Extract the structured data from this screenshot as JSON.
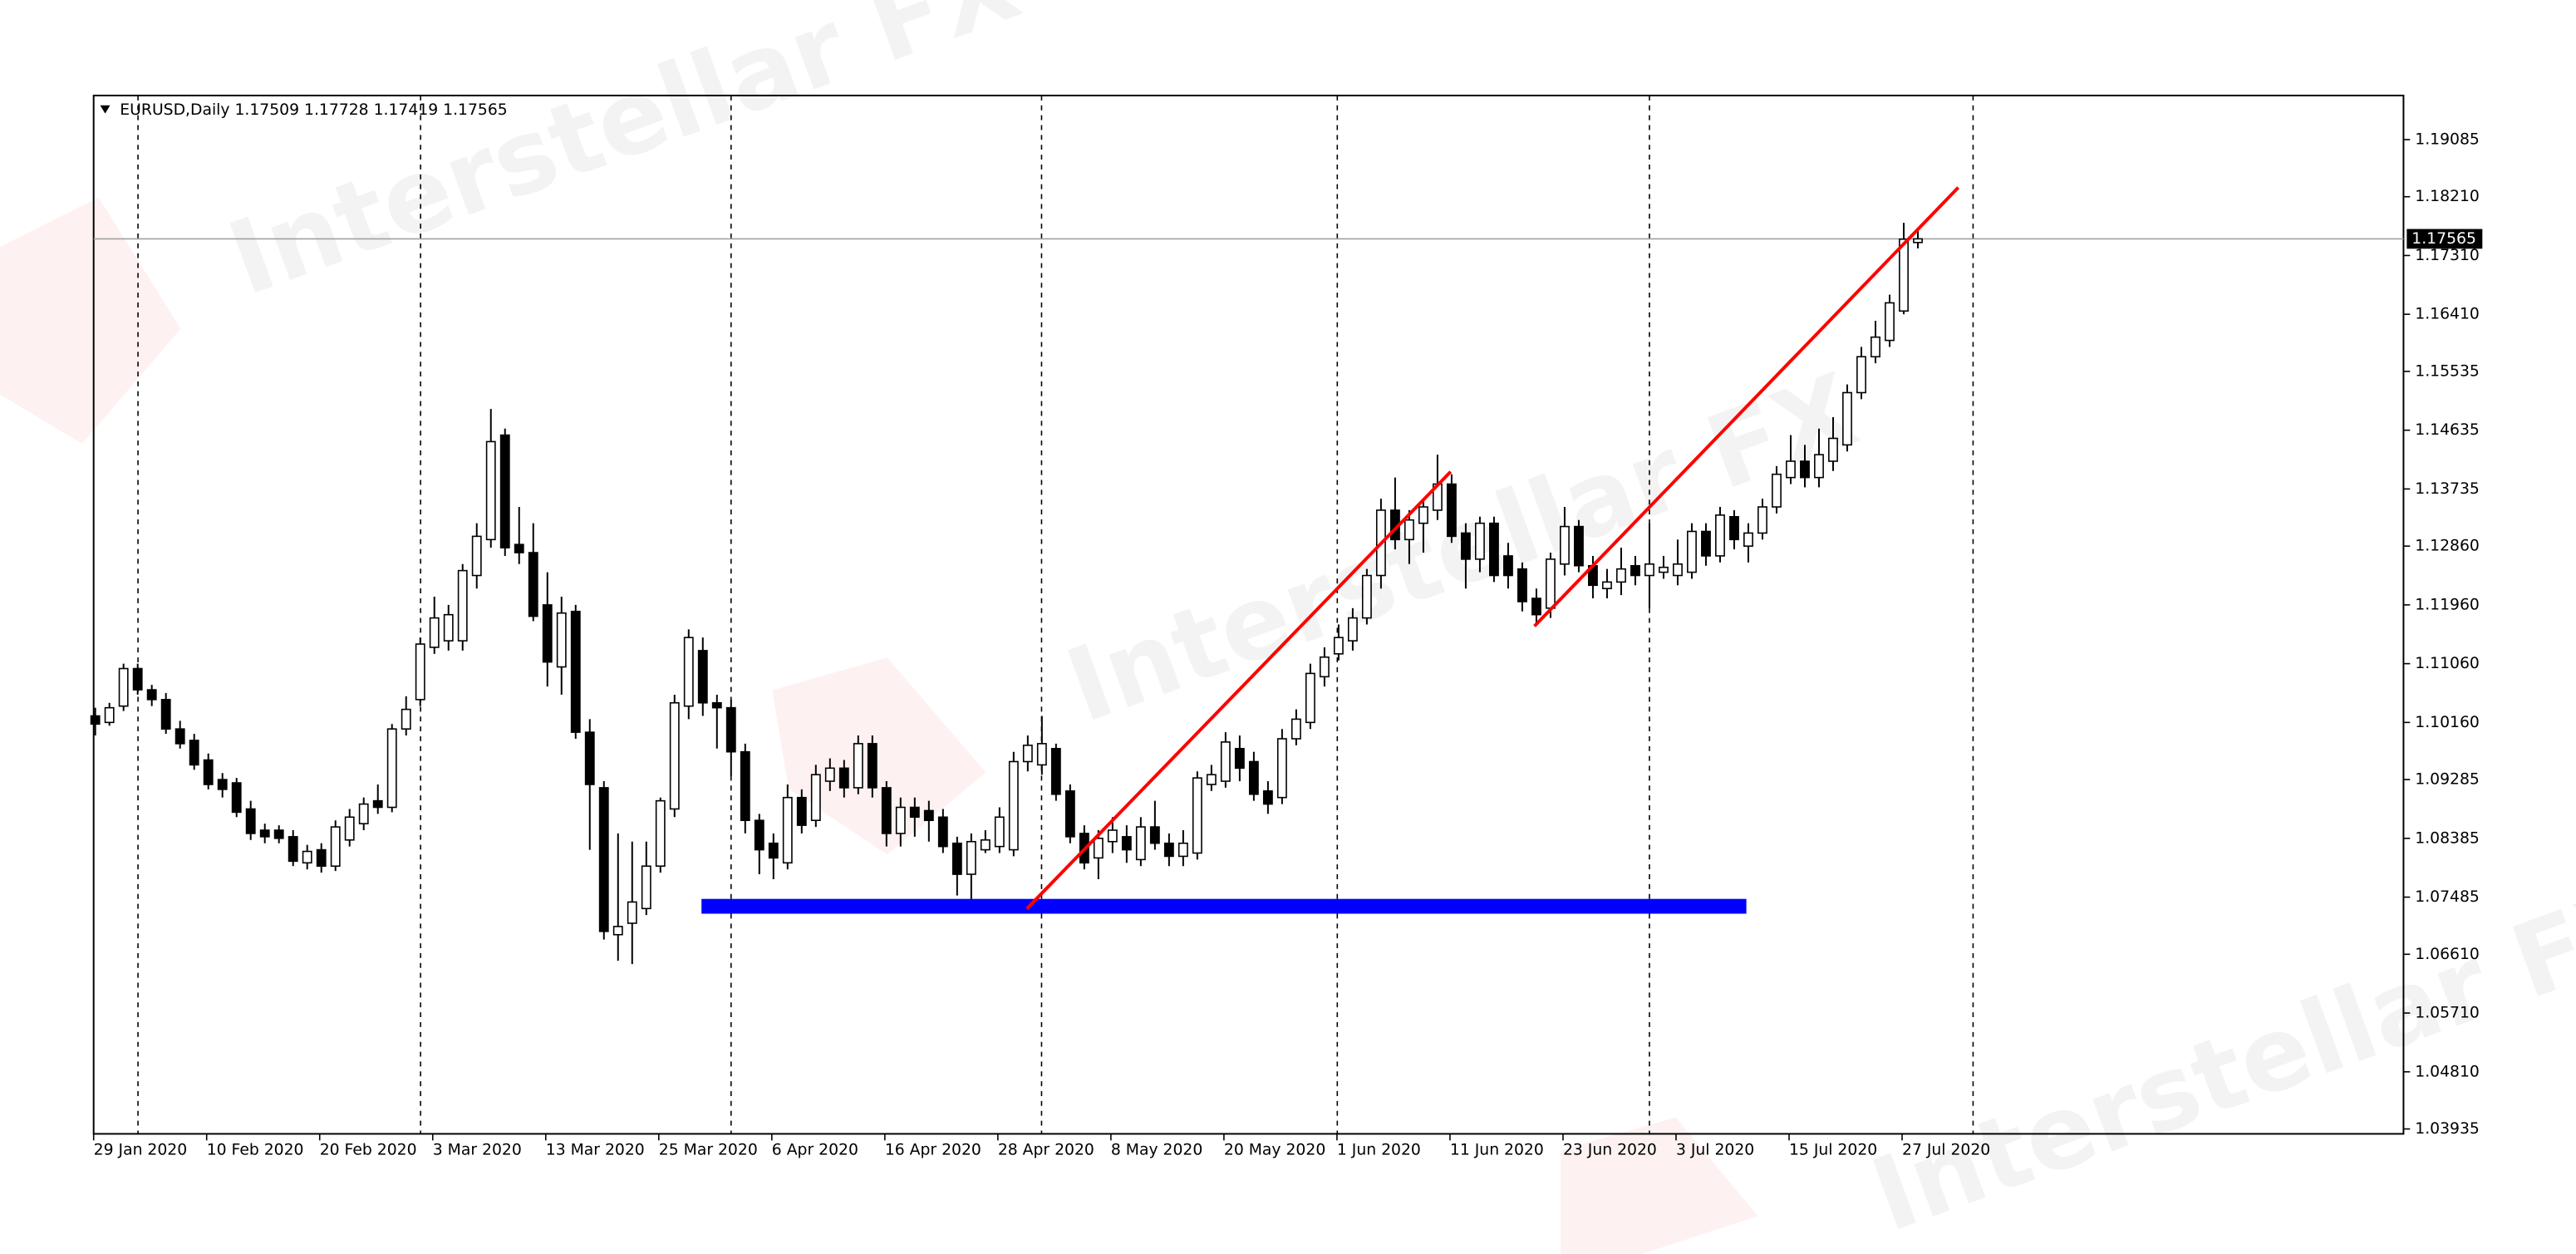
{
  "chart_data": {
    "type": "candlestick",
    "title": "EURUSD,Daily  1.17509 1.17728 1.17419 1.17565",
    "watermark": "Interstellar FX",
    "categories": [
      "29 Jan 2020",
      null,
      null,
      null,
      null,
      null,
      null,
      null,
      "10 Feb 2020",
      null,
      null,
      null,
      null,
      null,
      null,
      null,
      "20 Feb 2020",
      null,
      null,
      null,
      null,
      null,
      null,
      null,
      "3 Mar 2020",
      null,
      null,
      null,
      null,
      null,
      null,
      null,
      "13 Mar 2020",
      null,
      null,
      null,
      null,
      null,
      null,
      null,
      "25 Mar 2020",
      null,
      null,
      null,
      null,
      null,
      null,
      null,
      "6 Apr 2020",
      null,
      null,
      null,
      null,
      null,
      null,
      null,
      "16 Apr 2020",
      null,
      null,
      null,
      null,
      null,
      null,
      null,
      "28 Apr 2020",
      null,
      null,
      null,
      null,
      null,
      null,
      null,
      "8 May 2020",
      null,
      null,
      null,
      null,
      null,
      null,
      null,
      "20 May 2020",
      null,
      null,
      null,
      null,
      null,
      null,
      null,
      "1 Jun 2020",
      null,
      null,
      null,
      null,
      null,
      null,
      null,
      "11 Jun 2020",
      null,
      null,
      null,
      null,
      null,
      null,
      null,
      "23 Jun 2020",
      null,
      null,
      null,
      null,
      null,
      null,
      null,
      "3 Jul 2020",
      null,
      null,
      null,
      null,
      null,
      null,
      null,
      "15 Jul 2020",
      null,
      null,
      null,
      null,
      null,
      null,
      null,
      "27 Jul 2020",
      null
    ],
    "open": [
      1.1026,
      1.1016,
      1.1041,
      1.10985,
      1.1066,
      1.1051,
      1.1006,
      1.09885,
      1.09585,
      1.09285,
      1.09235,
      1.08835,
      1.0851,
      1.0851,
      1.0841,
      1.0801,
      1.0821,
      1.0796,
      1.0836,
      1.0861,
      1.0896,
      1.0886,
      1.1006,
      1.1051,
      1.1131,
      1.1141,
      1.1141,
      1.1241,
      1.1296,
      1.1456,
      1.12885,
      1.1276,
      1.1196,
      1.1101,
      1.1186,
      1.1001,
      1.0916,
      1.0691,
      1.07085,
      1.0731,
      1.0796,
      1.08835,
      1.1041,
      1.1126,
      1.1046,
      1.10385,
      1.0971,
      1.0866,
      1.0831,
      1.0801,
      1.0901,
      1.0866,
      1.0926,
      1.0946,
      1.0916,
      1.09835,
      1.0916,
      1.0846,
      1.0886,
      1.0881,
      1.0871,
      1.0831,
      1.07835,
      1.0821,
      1.0826,
      1.0821,
      1.0956,
      1.0951,
      1.0976,
      1.0911,
      1.0846,
      1.08085,
      1.08335,
      1.0841,
      1.0806,
      1.0856,
      1.0831,
      1.0811,
      1.0816,
      1.0921,
      1.0926,
      1.0976,
      1.0956,
      1.0911,
      1.0901,
      1.0991,
      1.1016,
      1.1086,
      1.1121,
      1.1141,
      1.1176,
      1.1241,
      1.1341,
      1.1296,
      1.1321,
      1.1341,
      1.1381,
      1.1306,
      1.1266,
      1.1321,
      1.1271,
      1.1251,
      1.1206,
      1.1191,
      1.12585,
      1.1316,
      1.1256,
      1.1221,
      1.1231,
      1.1256,
      1.1241,
      1.1246,
      1.1241,
      1.1246,
      1.13085,
      1.1271,
      1.1331,
      1.1286,
      1.1306,
      1.1346,
      1.1391,
      1.1416,
      1.1391,
      1.1416,
      1.1441,
      1.1521,
      1.1576,
      1.1601,
      1.1646,
      1.17509
    ],
    "high": [
      1.10385,
      1.1046,
      1.1106,
      1.1106,
      1.10735,
      1.1061,
      1.10185,
      1.09985,
      1.09685,
      1.09385,
      1.0931,
      1.0896,
      1.0861,
      1.08585,
      1.0851,
      1.08285,
      1.0831,
      1.0866,
      1.08835,
      1.0901,
      1.0921,
      1.10135,
      1.1056,
      1.1146,
      1.12085,
      1.1196,
      1.12585,
      1.1321,
      1.1496,
      1.1466,
      1.1346,
      1.1321,
      1.1246,
      1.12085,
      1.1196,
      1.1021,
      1.0926,
      1.0846,
      1.08335,
      1.08335,
      1.0901,
      1.10585,
      1.11585,
      1.1146,
      1.10585,
      1.1051,
      1.09835,
      1.0876,
      1.0846,
      1.0921,
      1.09135,
      1.0951,
      1.0961,
      1.09585,
      1.0996,
      1.0996,
      1.0926,
      1.0901,
      1.0901,
      1.0896,
      1.08835,
      1.0841,
      1.0846,
      1.0851,
      1.0886,
      1.0971,
      1.0996,
      1.1026,
      1.09835,
      1.0921,
      1.08585,
      1.0851,
      1.0871,
      1.08585,
      1.0871,
      1.0896,
      1.0846,
      1.0851,
      1.0941,
      1.0951,
      1.1001,
      1.0996,
      1.0971,
      1.0926,
      1.1006,
      1.1036,
      1.1106,
      1.1131,
      1.1166,
      1.1191,
      1.1251,
      1.13585,
      1.1391,
      1.1341,
      1.13585,
      1.1426,
      1.1396,
      1.1321,
      1.1331,
      1.1331,
      1.1291,
      1.1261,
      1.1221,
      1.1276,
      1.1346,
      1.1326,
      1.1271,
      1.1251,
      1.12835,
      1.1271,
      1.1321,
      1.1271,
      1.1296,
      1.1321,
      1.1321,
      1.1346,
      1.1341,
      1.1321,
      1.13585,
      1.14085,
      1.1456,
      1.1441,
      1.1466,
      1.14835,
      1.15335,
      1.1591,
      1.1631,
      1.1671,
      1.1781,
      1.17728
    ],
    "low": [
      1.0996,
      1.1011,
      1.10335,
      1.10585,
      1.1041,
      1.09985,
      1.0976,
      1.09435,
      1.09135,
      1.0901,
      1.0871,
      1.0836,
      1.0831,
      1.0831,
      1.0796,
      1.0791,
      1.0786,
      1.07885,
      1.0826,
      1.0851,
      1.0876,
      1.08785,
      1.0996,
      1.1041,
      1.1121,
      1.1126,
      1.1126,
      1.1221,
      1.12835,
      1.1271,
      1.12585,
      1.1171,
      1.1071,
      1.10585,
      1.0991,
      1.0821,
      1.06835,
      1.0651,
      1.0646,
      1.0721,
      1.0786,
      1.0871,
      1.1021,
      1.1026,
      1.0976,
      1.09335,
      1.0846,
      1.07835,
      1.0776,
      1.0791,
      1.0846,
      1.0856,
      1.0911,
      1.0901,
      1.0906,
      1.0901,
      1.0826,
      1.0826,
      1.0841,
      1.08335,
      1.0816,
      1.0751,
      1.07385,
      1.0816,
      1.0816,
      1.0811,
      1.0941,
      1.0936,
      1.0896,
      1.0831,
      1.0791,
      1.0776,
      1.0816,
      1.0801,
      1.0796,
      1.0821,
      1.0796,
      1.0796,
      1.0806,
      1.0911,
      1.0916,
      1.0926,
      1.0896,
      1.0876,
      1.0891,
      1.0981,
      1.1006,
      1.1071,
      1.1111,
      1.1126,
      1.1166,
      1.1221,
      1.1281,
      1.12585,
      1.1276,
      1.1326,
      1.1291,
      1.1221,
      1.1246,
      1.1231,
      1.1221,
      1.1186,
      1.1166,
      1.1176,
      1.1241,
      1.1246,
      1.1206,
      1.1206,
      1.1211,
      1.1226,
      1.1191,
      1.1236,
      1.1226,
      1.1236,
      1.1256,
      1.1261,
      1.1281,
      1.1261,
      1.1296,
      1.1336,
      1.1381,
      1.1376,
      1.1376,
      1.1401,
      1.1431,
      1.1511,
      1.1566,
      1.1591,
      1.1641,
      1.17419
    ],
    "close": [
      1.10135,
      1.10385,
      1.10985,
      1.1066,
      1.1051,
      1.1006,
      1.09835,
      1.0951,
      1.0921,
      1.09135,
      1.08785,
      1.0846,
      1.0841,
      1.08385,
      1.08035,
      1.08185,
      1.0796,
      1.0856,
      1.0871,
      1.0891,
      1.0886,
      1.1006,
      1.1036,
      1.1136,
      1.1176,
      1.1181,
      1.12485,
      1.1301,
      1.1446,
      1.12835,
      1.1276,
      1.11785,
      1.11085,
      1.11835,
      1.1001,
      1.0921,
      1.0696,
      1.07035,
      1.0741,
      1.0796,
      1.0896,
      1.1046,
      1.1146,
      1.1046,
      1.10385,
      1.0971,
      1.0866,
      1.0821,
      1.08085,
      1.0901,
      1.08585,
      1.0936,
      1.0946,
      1.0916,
      1.09835,
      1.0916,
      1.0846,
      1.0886,
      1.0871,
      1.0866,
      1.0826,
      1.07835,
      1.08335,
      1.0836,
      1.0871,
      1.0956,
      1.0981,
      1.09835,
      1.0906,
      1.0841,
      1.0801,
      1.08385,
      1.0851,
      1.0821,
      1.0856,
      1.0831,
      1.0811,
      1.0831,
      1.0931,
      1.0936,
      1.0986,
      1.0946,
      1.0906,
      1.0891,
      1.0991,
      1.1021,
      1.1091,
      1.1116,
      1.1146,
      1.1176,
      1.1241,
      1.1341,
      1.1296,
      1.1326,
      1.1346,
      1.1381,
      1.1301,
      1.1266,
      1.1321,
      1.1241,
      1.1241,
      1.1201,
      1.1181,
      1.1266,
      1.1316,
      1.1256,
      1.1226,
      1.1231,
      1.1251,
      1.1241,
      1.12585,
      1.12535,
      1.12585,
      1.13085,
      1.1271,
      1.13335,
      1.1296,
      1.1306,
      1.1346,
      1.1396,
      1.1416,
      1.1391,
      1.1426,
      1.1451,
      1.1521,
      1.1576,
      1.1606,
      1.16585,
      1.1756,
      1.17565
    ],
    "up_color": "#ffffff",
    "down_color": "#000000",
    "last_price": 1.17565,
    "ylim": [
      1.0386,
      1.1976
    ],
    "yticks": [
      1.19085,
      {
        "value": 1.1821,
        "label": "1.18210"
      },
      {
        "value": 1.1731,
        "label": "1.17310"
      },
      {
        "value": 1.1641,
        "label": "1.16410"
      },
      1.15535,
      1.14635,
      1.13735,
      {
        "value": 1.1286,
        "label": "1.12860"
      },
      {
        "value": 1.1196,
        "label": "1.11960"
      },
      {
        "value": 1.1106,
        "label": "1.11060"
      },
      {
        "value": 1.1016,
        "label": "1.10160"
      },
      1.09285,
      1.08385,
      1.07485,
      {
        "value": 1.0661,
        "label": "1.06610"
      },
      {
        "value": 1.0571,
        "label": "1.05710"
      },
      {
        "value": 1.0481,
        "label": "1.04810"
      },
      1.03935
    ]
  }
}
